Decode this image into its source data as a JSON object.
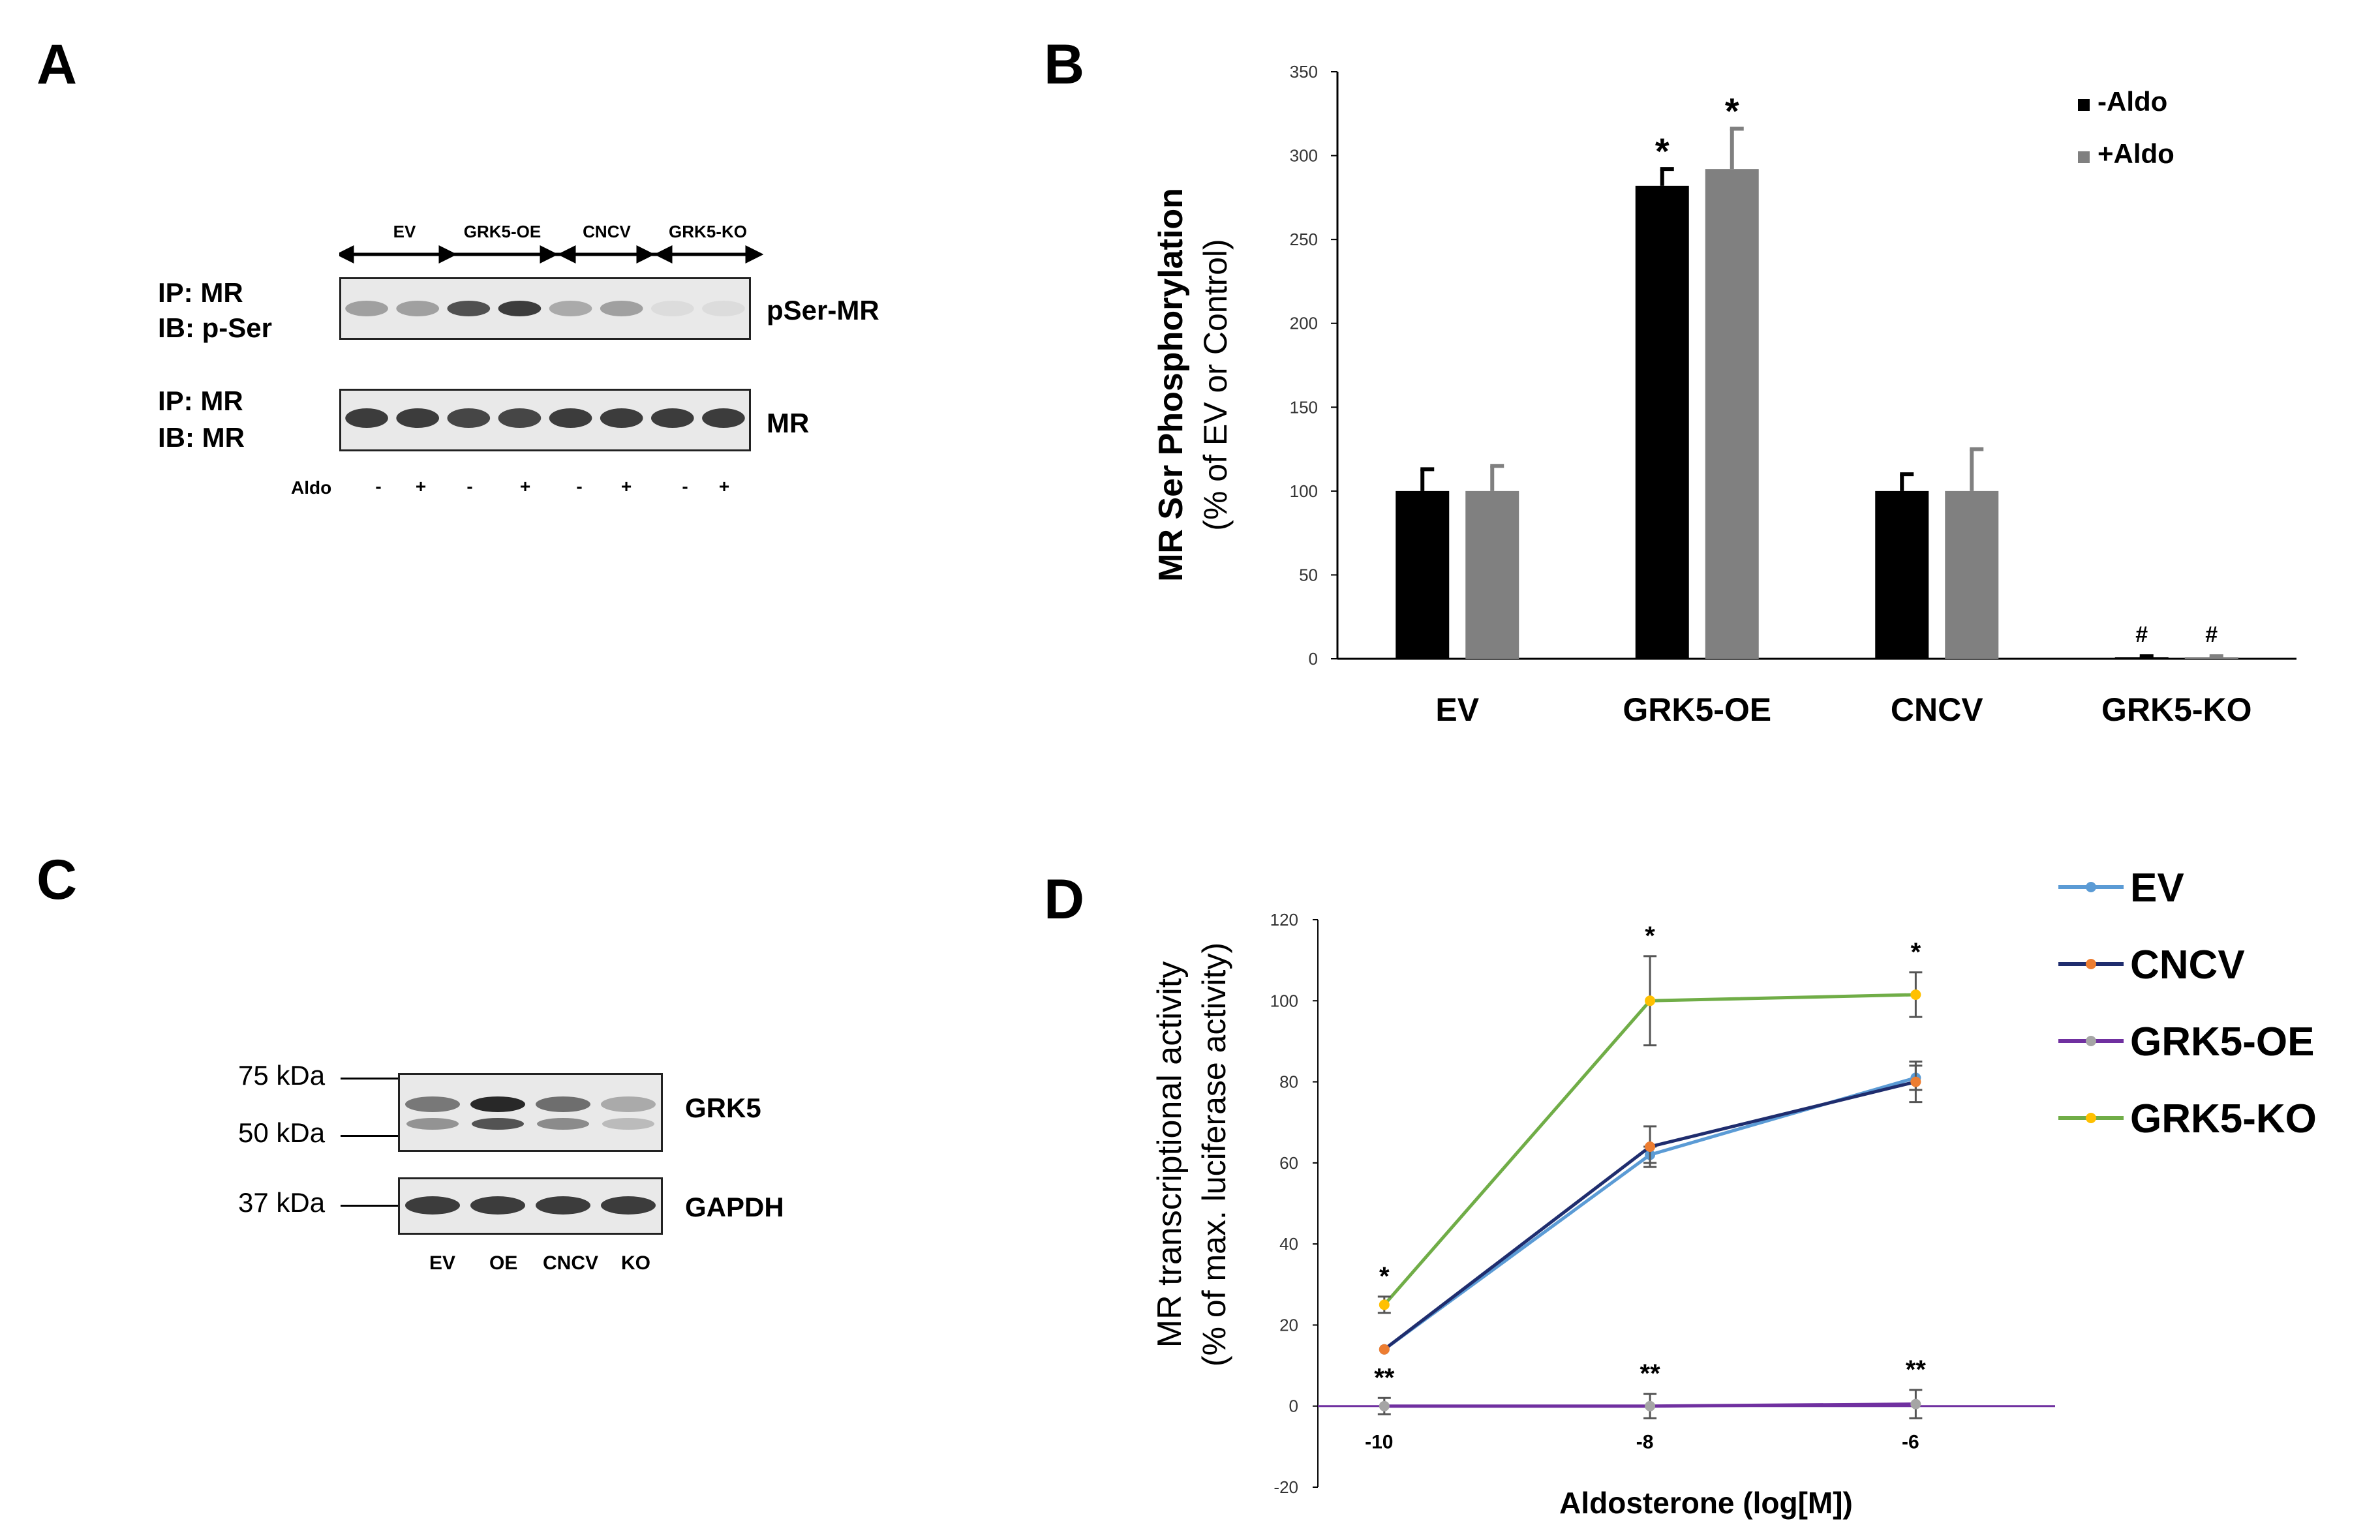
{
  "panel_labels": {
    "a": "A",
    "b": "B",
    "c": "C",
    "d": "D"
  },
  "panel_a": {
    "groups": [
      "EV",
      "GRK5-OE",
      "CNCV",
      "GRK5-KO"
    ],
    "blot1_label_line1": "IP: MR",
    "blot1_label_line2": "IB: p-Ser",
    "blot1_name": "pSer-MR",
    "blot2_label_line1": "IP: MR",
    "blot2_label_line2": "IB: MR",
    "blot2_name": "MR",
    "aldo_label": "Aldo",
    "aldo_marks": [
      "-",
      "+",
      "-",
      "+",
      "-",
      "+",
      "-",
      "+"
    ],
    "pser_intensity": [
      0.35,
      0.35,
      0.75,
      0.85,
      0.3,
      0.35,
      0.05,
      0.05
    ],
    "mr_intensity": [
      0.85,
      0.85,
      0.8,
      0.8,
      0.85,
      0.85,
      0.85,
      0.85
    ]
  },
  "panel_c": {
    "ladder": [
      "75 kDa",
      "50 kDa",
      "37 kDa"
    ],
    "band1_name": "GRK5",
    "band2_name": "GAPDH",
    "lanes": [
      "EV",
      "OE",
      "CNCV",
      "KO"
    ],
    "grk5_intensity": [
      0.55,
      0.95,
      0.6,
      0.3
    ],
    "gapdh_intensity": [
      0.85,
      0.85,
      0.85,
      0.85
    ]
  },
  "chart_data": [
    {
      "type": "bar",
      "panel": "B",
      "title": "",
      "ylabel_line1": "MR Ser Phosphorylation",
      "ylabel_line2": "(% of EV or Control)",
      "xlabel": "",
      "ylim": [
        0,
        350
      ],
      "yticks": [
        0,
        50,
        100,
        150,
        200,
        250,
        300,
        350
      ],
      "categories": [
        "EV",
        "GRK5-OE",
        "CNCV",
        "GRK5-KO"
      ],
      "series": [
        {
          "name": "-Aldo",
          "color": "#000000",
          "values": [
            100,
            282,
            100,
            1
          ],
          "errors": [
            13,
            10,
            10,
            0.5
          ],
          "annotations": [
            "",
            "*",
            "",
            "#"
          ]
        },
        {
          "name": "+Aldo",
          "color": "#808080",
          "values": [
            100,
            292,
            100,
            1
          ],
          "errors": [
            15,
            24,
            25,
            0.5
          ],
          "annotations": [
            "",
            "*",
            "",
            "#"
          ]
        }
      ],
      "legend_position": "top-right"
    },
    {
      "type": "line",
      "panel": "D",
      "title": "",
      "ylabel_line1": "MR transcriptional activity",
      "ylabel_line2": "(% of max. luciferase activity)",
      "xlabel": "Aldosterone (log[M])",
      "x": [
        -10,
        -8,
        -6
      ],
      "xlim": [
        -10.5,
        -5
      ],
      "ylim": [
        -20,
        120
      ],
      "yticks": [
        -20,
        0,
        20,
        40,
        60,
        80,
        100,
        120
      ],
      "xticks": [
        -10,
        -8,
        -6
      ],
      "series": [
        {
          "name": "EV",
          "color": "#5B9BD5",
          "marker": "#5B9BD5",
          "values": [
            14,
            62,
            81
          ],
          "errors": [
            0,
            2,
            3
          ],
          "annotations": [
            "",
            "",
            ""
          ]
        },
        {
          "name": "CNCV",
          "color": "#1F2D6E",
          "marker": "#ED7D31",
          "values": [
            14,
            64,
            80
          ],
          "errors": [
            0,
            5,
            5
          ],
          "annotations": [
            "",
            "",
            ""
          ]
        },
        {
          "name": "GRK5-OE",
          "color": "#7030A0",
          "marker": "#A5A5A5",
          "values": [
            0,
            0,
            0.5
          ],
          "errors": [
            2,
            3,
            3.5
          ],
          "annotations": [
            "**",
            "**",
            "**"
          ]
        },
        {
          "name": "GRK5-KO",
          "color": "#70AD47",
          "marker": "#FFC000",
          "values": [
            25,
            100,
            101.5
          ],
          "errors": [
            2,
            11,
            5.5
          ],
          "annotations": [
            "*",
            "*",
            "*"
          ]
        }
      ],
      "legend_position": "top-right"
    }
  ]
}
